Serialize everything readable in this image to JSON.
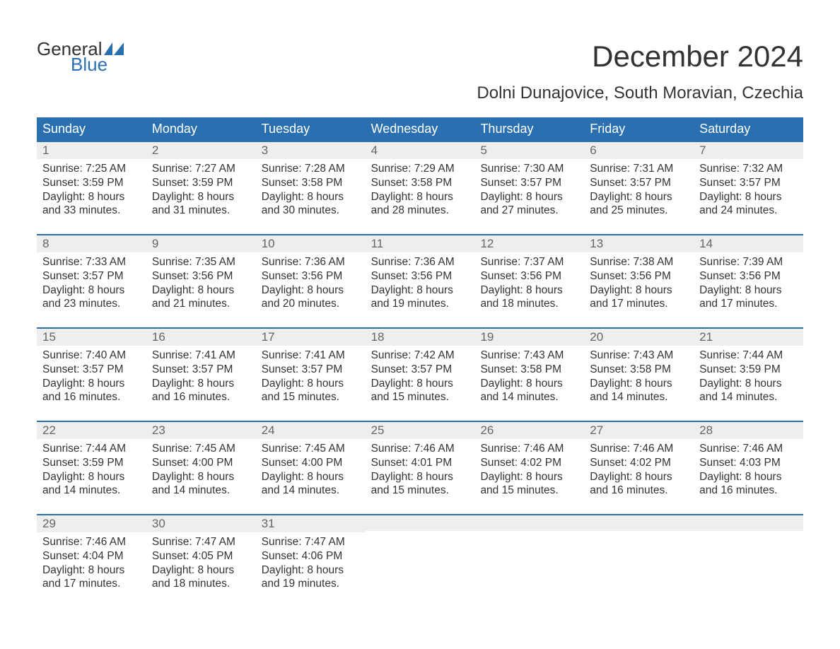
{
  "logo": {
    "word1": "General",
    "word2": "Blue",
    "flag_color": "#2a6fb0",
    "text_color_dark": "#333333"
  },
  "title": {
    "month": "December 2024",
    "location": "Dolni Dunajovice, South Moravian, Czechia"
  },
  "colors": {
    "header_bg": "#2a6fb0",
    "header_text": "#ffffff",
    "daynum_bg": "#eeeeee",
    "daynum_text": "#666666",
    "body_text": "#333333",
    "week_border": "#2a6fb0",
    "page_bg": "#ffffff"
  },
  "fontsizes": {
    "month_pt": 42,
    "location_pt": 24,
    "header_pt": 18,
    "daynum_pt": 17,
    "body_pt": 15.5,
    "logo_pt": 26
  },
  "weekdays": [
    "Sunday",
    "Monday",
    "Tuesday",
    "Wednesday",
    "Thursday",
    "Friday",
    "Saturday"
  ],
  "weeks": [
    [
      {
        "n": "1",
        "sunrise": "7:25 AM",
        "sunset": "3:59 PM",
        "dl1": "8 hours",
        "dl2": "and 33 minutes."
      },
      {
        "n": "2",
        "sunrise": "7:27 AM",
        "sunset": "3:59 PM",
        "dl1": "8 hours",
        "dl2": "and 31 minutes."
      },
      {
        "n": "3",
        "sunrise": "7:28 AM",
        "sunset": "3:58 PM",
        "dl1": "8 hours",
        "dl2": "and 30 minutes."
      },
      {
        "n": "4",
        "sunrise": "7:29 AM",
        "sunset": "3:58 PM",
        "dl1": "8 hours",
        "dl2": "and 28 minutes."
      },
      {
        "n": "5",
        "sunrise": "7:30 AM",
        "sunset": "3:57 PM",
        "dl1": "8 hours",
        "dl2": "and 27 minutes."
      },
      {
        "n": "6",
        "sunrise": "7:31 AM",
        "sunset": "3:57 PM",
        "dl1": "8 hours",
        "dl2": "and 25 minutes."
      },
      {
        "n": "7",
        "sunrise": "7:32 AM",
        "sunset": "3:57 PM",
        "dl1": "8 hours",
        "dl2": "and 24 minutes."
      }
    ],
    [
      {
        "n": "8",
        "sunrise": "7:33 AM",
        "sunset": "3:57 PM",
        "dl1": "8 hours",
        "dl2": "and 23 minutes."
      },
      {
        "n": "9",
        "sunrise": "7:35 AM",
        "sunset": "3:56 PM",
        "dl1": "8 hours",
        "dl2": "and 21 minutes."
      },
      {
        "n": "10",
        "sunrise": "7:36 AM",
        "sunset": "3:56 PM",
        "dl1": "8 hours",
        "dl2": "and 20 minutes."
      },
      {
        "n": "11",
        "sunrise": "7:36 AM",
        "sunset": "3:56 PM",
        "dl1": "8 hours",
        "dl2": "and 19 minutes."
      },
      {
        "n": "12",
        "sunrise": "7:37 AM",
        "sunset": "3:56 PM",
        "dl1": "8 hours",
        "dl2": "and 18 minutes."
      },
      {
        "n": "13",
        "sunrise": "7:38 AM",
        "sunset": "3:56 PM",
        "dl1": "8 hours",
        "dl2": "and 17 minutes."
      },
      {
        "n": "14",
        "sunrise": "7:39 AM",
        "sunset": "3:56 PM",
        "dl1": "8 hours",
        "dl2": "and 17 minutes."
      }
    ],
    [
      {
        "n": "15",
        "sunrise": "7:40 AM",
        "sunset": "3:57 PM",
        "dl1": "8 hours",
        "dl2": "and 16 minutes."
      },
      {
        "n": "16",
        "sunrise": "7:41 AM",
        "sunset": "3:57 PM",
        "dl1": "8 hours",
        "dl2": "and 16 minutes."
      },
      {
        "n": "17",
        "sunrise": "7:41 AM",
        "sunset": "3:57 PM",
        "dl1": "8 hours",
        "dl2": "and 15 minutes."
      },
      {
        "n": "18",
        "sunrise": "7:42 AM",
        "sunset": "3:57 PM",
        "dl1": "8 hours",
        "dl2": "and 15 minutes."
      },
      {
        "n": "19",
        "sunrise": "7:43 AM",
        "sunset": "3:58 PM",
        "dl1": "8 hours",
        "dl2": "and 14 minutes."
      },
      {
        "n": "20",
        "sunrise": "7:43 AM",
        "sunset": "3:58 PM",
        "dl1": "8 hours",
        "dl2": "and 14 minutes."
      },
      {
        "n": "21",
        "sunrise": "7:44 AM",
        "sunset": "3:59 PM",
        "dl1": "8 hours",
        "dl2": "and 14 minutes."
      }
    ],
    [
      {
        "n": "22",
        "sunrise": "7:44 AM",
        "sunset": "3:59 PM",
        "dl1": "8 hours",
        "dl2": "and 14 minutes."
      },
      {
        "n": "23",
        "sunrise": "7:45 AM",
        "sunset": "4:00 PM",
        "dl1": "8 hours",
        "dl2": "and 14 minutes."
      },
      {
        "n": "24",
        "sunrise": "7:45 AM",
        "sunset": "4:00 PM",
        "dl1": "8 hours",
        "dl2": "and 14 minutes."
      },
      {
        "n": "25",
        "sunrise": "7:46 AM",
        "sunset": "4:01 PM",
        "dl1": "8 hours",
        "dl2": "and 15 minutes."
      },
      {
        "n": "26",
        "sunrise": "7:46 AM",
        "sunset": "4:02 PM",
        "dl1": "8 hours",
        "dl2": "and 15 minutes."
      },
      {
        "n": "27",
        "sunrise": "7:46 AM",
        "sunset": "4:02 PM",
        "dl1": "8 hours",
        "dl2": "and 16 minutes."
      },
      {
        "n": "28",
        "sunrise": "7:46 AM",
        "sunset": "4:03 PM",
        "dl1": "8 hours",
        "dl2": "and 16 minutes."
      }
    ],
    [
      {
        "n": "29",
        "sunrise": "7:46 AM",
        "sunset": "4:04 PM",
        "dl1": "8 hours",
        "dl2": "and 17 minutes."
      },
      {
        "n": "30",
        "sunrise": "7:47 AM",
        "sunset": "4:05 PM",
        "dl1": "8 hours",
        "dl2": "and 18 minutes."
      },
      {
        "n": "31",
        "sunrise": "7:47 AM",
        "sunset": "4:06 PM",
        "dl1": "8 hours",
        "dl2": "and 19 minutes."
      },
      null,
      null,
      null,
      null
    ]
  ],
  "labels": {
    "sunrise": "Sunrise: ",
    "sunset": "Sunset: ",
    "daylight": "Daylight: "
  }
}
